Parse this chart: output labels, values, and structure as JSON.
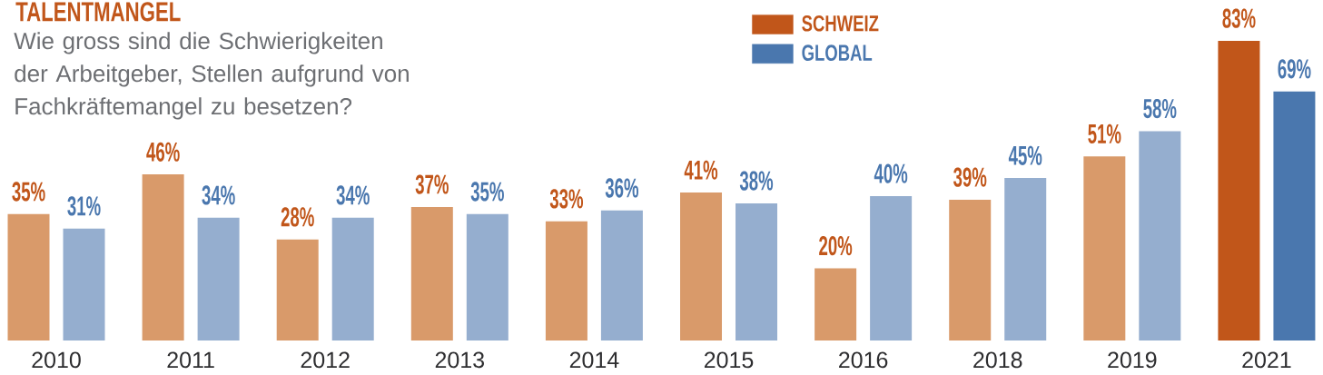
{
  "chart_data": {
    "type": "bar",
    "title": "TALENTMANGEL",
    "subtitle": "Wie gross sind die Schwierigkeiten der Arbeitgeber, Stellen aufgrund von Fachkräftemangel zu besetzen?",
    "categories": [
      "2010",
      "2011",
      "2012",
      "2013",
      "2014",
      "2015",
      "2016",
      "2018",
      "2019",
      "2021"
    ],
    "series": [
      {
        "name": "SCHWEIZ",
        "color": "#c1561a",
        "colors": [
          "#d99a6a",
          "#d99a6a",
          "#d99a6a",
          "#d99a6a",
          "#d99a6a",
          "#d99a6a",
          "#d99a6a",
          "#d99a6a",
          "#d99a6a",
          "#c1561a"
        ],
        "values": [
          35,
          46,
          28,
          37,
          33,
          41,
          20,
          39,
          51,
          83
        ],
        "value_labels": [
          "35%",
          "46%",
          "28%",
          "37%",
          "33%",
          "41%",
          "20%",
          "39%",
          "51%",
          "83%"
        ]
      },
      {
        "name": "GLOBAL",
        "color": "#4a77ae",
        "colors": [
          "#95aecf",
          "#95aecf",
          "#95aecf",
          "#95aecf",
          "#95aecf",
          "#95aecf",
          "#95aecf",
          "#95aecf",
          "#95aecf",
          "#4a77ae"
        ],
        "values": [
          31,
          34,
          34,
          35,
          36,
          38,
          40,
          45,
          58,
          69
        ],
        "value_labels": [
          "31%",
          "34%",
          "34%",
          "35%",
          "36%",
          "38%",
          "40%",
          "45%",
          "58%",
          "69%"
        ]
      }
    ],
    "tick_labels": "x",
    "legend": "top"
  }
}
